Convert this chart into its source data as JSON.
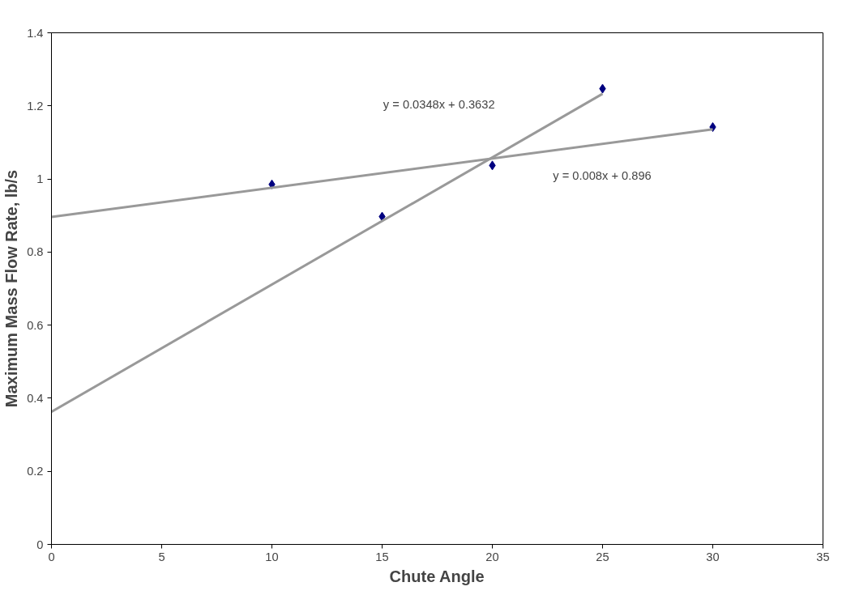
{
  "chart_data": {
    "type": "scatter",
    "xlabel": "Chute Angle",
    "ylabel": "Maximum Mass Flow Rate, lb/s",
    "xlim": [
      0,
      35
    ],
    "ylim": [
      0,
      1.4
    ],
    "xticks": [
      0,
      5,
      10,
      15,
      20,
      25,
      30,
      35
    ],
    "yticks": [
      0,
      {
        "value": 0.2,
        "label": "0.2"
      },
      {
        "value": 0.4,
        "label": "0.4"
      },
      {
        "value": 0.6,
        "label": "0.6"
      },
      {
        "value": 0.8,
        "label": "0.8"
      },
      1,
      {
        "value": 1.2,
        "label": "1.2"
      },
      {
        "value": 1.4,
        "label": "1.4"
      }
    ],
    "grid": false,
    "series": [
      {
        "marker": "diamond",
        "color": "#000080",
        "x": [
          10,
          15,
          20,
          25,
          30
        ],
        "values": [
          0.985,
          0.897,
          1.037,
          1.247,
          1.142
        ]
      },
      {
        "type": "line",
        "color": "#999999",
        "x": [
          0,
          25
        ],
        "values": [
          0.363,
          1.233
        ]
      },
      {
        "type": "line",
        "color": "#999999",
        "x": [
          0,
          30
        ],
        "values": [
          0.896,
          1.136
        ]
      }
    ],
    "annotations": [
      "y = 0.0348x + 0.3632",
      "y = 0.008x + 0.896"
    ]
  }
}
